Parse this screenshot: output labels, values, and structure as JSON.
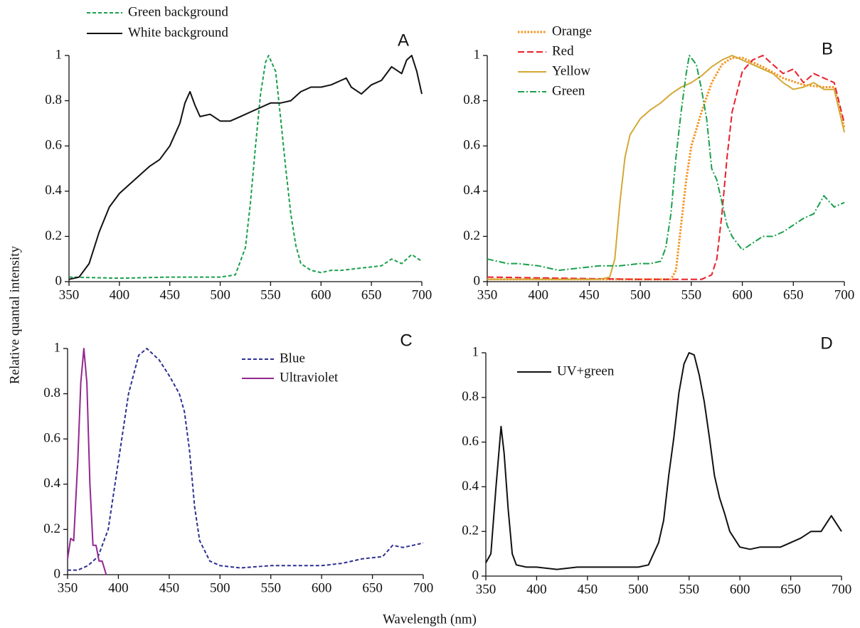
{
  "ylabel": "Relative quantal intensity",
  "xlabel": "Wavelength (nm)",
  "chart_data": [
    {
      "type": "line",
      "title": "A",
      "xlim": [
        350,
        700
      ],
      "ylim": [
        0,
        1
      ],
      "xticks": [
        350,
        400,
        450,
        500,
        550,
        600,
        650,
        700
      ],
      "yticks": [
        0,
        0.2,
        0.4,
        0.6,
        0.8,
        1
      ],
      "series": [
        {
          "name": "Green background",
          "color": "#1aa04c",
          "dash": "dashed",
          "x": [
            350,
            400,
            450,
            500,
            515,
            525,
            530,
            535,
            540,
            545,
            548,
            555,
            560,
            565,
            570,
            575,
            580,
            590,
            600,
            610,
            620,
            640,
            660,
            670,
            680,
            690,
            700
          ],
          "values": [
            0.02,
            0.015,
            0.02,
            0.02,
            0.03,
            0.15,
            0.35,
            0.6,
            0.83,
            0.97,
            1.0,
            0.93,
            0.72,
            0.5,
            0.3,
            0.16,
            0.08,
            0.05,
            0.04,
            0.05,
            0.05,
            0.06,
            0.07,
            0.1,
            0.08,
            0.12,
            0.09
          ]
        },
        {
          "name": "White background",
          "color": "#111111",
          "dash": "solid",
          "x": [
            350,
            360,
            370,
            380,
            390,
            400,
            410,
            420,
            430,
            440,
            450,
            460,
            465,
            470,
            475,
            480,
            490,
            500,
            510,
            520,
            530,
            540,
            550,
            560,
            570,
            580,
            590,
            600,
            610,
            620,
            625,
            630,
            640,
            650,
            660,
            670,
            680,
            685,
            690,
            695,
            700
          ],
          "values": [
            0.01,
            0.02,
            0.08,
            0.22,
            0.33,
            0.39,
            0.43,
            0.47,
            0.51,
            0.54,
            0.6,
            0.7,
            0.79,
            0.84,
            0.78,
            0.73,
            0.74,
            0.71,
            0.71,
            0.73,
            0.75,
            0.77,
            0.79,
            0.79,
            0.8,
            0.84,
            0.86,
            0.86,
            0.87,
            0.89,
            0.9,
            0.86,
            0.83,
            0.87,
            0.89,
            0.95,
            0.92,
            0.98,
            1.0,
            0.93,
            0.83
          ]
        }
      ]
    },
    {
      "type": "line",
      "title": "B",
      "xlim": [
        350,
        700
      ],
      "ylim": [
        0,
        1
      ],
      "xticks": [
        350,
        400,
        450,
        500,
        550,
        600,
        650,
        700
      ],
      "yticks": [
        0,
        0.2,
        0.4,
        0.6,
        0.8,
        1
      ],
      "series": [
        {
          "name": "Orange",
          "color": "#f7931e",
          "dash": "dotted",
          "x": [
            350,
            500,
            530,
            535,
            540,
            545,
            550,
            560,
            570,
            580,
            590,
            600,
            610,
            620,
            640,
            660,
            680,
            690,
            700
          ],
          "values": [
            0.01,
            0.01,
            0.01,
            0.05,
            0.25,
            0.45,
            0.6,
            0.75,
            0.88,
            0.96,
            0.99,
            0.99,
            0.97,
            0.95,
            0.9,
            0.87,
            0.86,
            0.86,
            0.68
          ]
        },
        {
          "name": "Red",
          "color": "#e8202a",
          "dash": "longdash",
          "x": [
            350,
            500,
            560,
            570,
            575,
            580,
            585,
            590,
            600,
            610,
            620,
            625,
            640,
            650,
            660,
            670,
            680,
            690,
            700
          ],
          "values": [
            0.02,
            0.01,
            0.01,
            0.03,
            0.1,
            0.3,
            0.55,
            0.75,
            0.93,
            0.98,
            1.0,
            0.98,
            0.92,
            0.94,
            0.88,
            0.92,
            0.9,
            0.88,
            0.7
          ]
        },
        {
          "name": "Yellow",
          "color": "#d4a835",
          "dash": "solid",
          "x": [
            350,
            460,
            470,
            475,
            480,
            485,
            490,
            500,
            510,
            520,
            530,
            540,
            550,
            560,
            570,
            580,
            590,
            600,
            610,
            620,
            630,
            640,
            650,
            660,
            670,
            680,
            690,
            700
          ],
          "values": [
            0.01,
            0.01,
            0.02,
            0.1,
            0.35,
            0.55,
            0.65,
            0.72,
            0.76,
            0.79,
            0.83,
            0.86,
            0.88,
            0.91,
            0.95,
            0.98,
            1.0,
            0.98,
            0.96,
            0.94,
            0.92,
            0.88,
            0.85,
            0.86,
            0.88,
            0.85,
            0.85,
            0.66
          ]
        },
        {
          "name": "Green",
          "color": "#1aa04c",
          "dash": "dashdot",
          "x": [
            350,
            360,
            370,
            380,
            400,
            420,
            440,
            460,
            480,
            500,
            510,
            520,
            525,
            530,
            535,
            540,
            545,
            548,
            555,
            560,
            565,
            570,
            575,
            580,
            585,
            590,
            600,
            610,
            620,
            630,
            640,
            650,
            660,
            670,
            680,
            690,
            700
          ],
          "values": [
            0.1,
            0.09,
            0.08,
            0.08,
            0.07,
            0.05,
            0.06,
            0.07,
            0.07,
            0.08,
            0.08,
            0.09,
            0.15,
            0.3,
            0.55,
            0.75,
            0.92,
            1.0,
            0.96,
            0.85,
            0.72,
            0.5,
            0.45,
            0.35,
            0.25,
            0.2,
            0.14,
            0.17,
            0.2,
            0.2,
            0.22,
            0.25,
            0.28,
            0.3,
            0.38,
            0.33,
            0.35
          ]
        }
      ]
    },
    {
      "type": "line",
      "title": "C",
      "xlim": [
        350,
        700
      ],
      "ylim": [
        0,
        1
      ],
      "xticks": [
        350,
        400,
        450,
        500,
        550,
        600,
        650,
        700
      ],
      "yticks": [
        0,
        0.2,
        0.4,
        0.6,
        0.8,
        1
      ],
      "series": [
        {
          "name": "Blue",
          "color": "#2e3192",
          "dash": "dashed",
          "x": [
            350,
            360,
            370,
            380,
            390,
            400,
            410,
            420,
            428,
            440,
            450,
            460,
            465,
            470,
            475,
            480,
            490,
            500,
            520,
            550,
            600,
            620,
            640,
            660,
            670,
            680,
            690,
            700
          ],
          "values": [
            0.02,
            0.02,
            0.04,
            0.08,
            0.2,
            0.5,
            0.8,
            0.97,
            1.0,
            0.95,
            0.88,
            0.8,
            0.72,
            0.55,
            0.3,
            0.15,
            0.06,
            0.04,
            0.03,
            0.04,
            0.04,
            0.05,
            0.07,
            0.08,
            0.13,
            0.12,
            0.13,
            0.14
          ]
        },
        {
          "name": "Ultraviolet",
          "color": "#92278f",
          "dash": "solid",
          "x": [
            350,
            353,
            356,
            360,
            363,
            366,
            369,
            372,
            375,
            378,
            381,
            384,
            388
          ],
          "values": [
            0.07,
            0.16,
            0.15,
            0.5,
            0.85,
            1.0,
            0.85,
            0.4,
            0.13,
            0.13,
            0.06,
            0.06,
            0.0
          ]
        }
      ]
    },
    {
      "type": "line",
      "title": "D",
      "xlim": [
        350,
        700
      ],
      "ylim": [
        0,
        1
      ],
      "xticks": [
        350,
        400,
        450,
        500,
        550,
        600,
        650,
        700
      ],
      "yticks": [
        0,
        0.2,
        0.4,
        0.6,
        0.8,
        1
      ],
      "series": [
        {
          "name": "UV+green",
          "color": "#111111",
          "dash": "solid",
          "x": [
            350,
            355,
            360,
            365,
            368,
            372,
            376,
            380,
            390,
            400,
            420,
            440,
            460,
            480,
            500,
            510,
            515,
            520,
            525,
            530,
            535,
            540,
            545,
            550,
            555,
            560,
            565,
            570,
            575,
            580,
            585,
            590,
            600,
            610,
            620,
            640,
            650,
            660,
            670,
            680,
            690,
            700
          ],
          "values": [
            0.06,
            0.1,
            0.4,
            0.67,
            0.55,
            0.3,
            0.1,
            0.05,
            0.04,
            0.04,
            0.03,
            0.04,
            0.04,
            0.04,
            0.04,
            0.05,
            0.1,
            0.15,
            0.25,
            0.45,
            0.62,
            0.82,
            0.95,
            1.0,
            0.99,
            0.9,
            0.78,
            0.62,
            0.45,
            0.35,
            0.28,
            0.2,
            0.13,
            0.12,
            0.13,
            0.13,
            0.15,
            0.17,
            0.2,
            0.2,
            0.27,
            0.2
          ]
        }
      ]
    }
  ]
}
